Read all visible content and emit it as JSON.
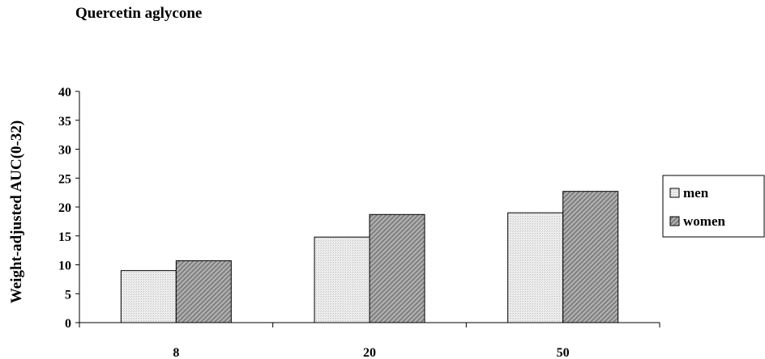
{
  "chart_data": {
    "type": "bar",
    "title": "Quercetin aglycone",
    "xlabel": "",
    "ylabel": "Weight-adjusted AUC(0-32)",
    "categories": [
      "8",
      "20",
      "50"
    ],
    "series": [
      {
        "name": "men",
        "values": [
          9,
          14.8,
          19
        ]
      },
      {
        "name": "women",
        "values": [
          10.7,
          18.7,
          22.7
        ]
      }
    ],
    "ylim": [
      0,
      40
    ],
    "yticks": [
      0,
      5,
      10,
      15,
      20,
      25,
      30,
      35,
      40
    ],
    "grid": false,
    "legend_position": "right"
  },
  "colors": {
    "men_fill": "#e4e4e4",
    "women_fill": "#9c9c9c",
    "stroke": "#000000"
  }
}
